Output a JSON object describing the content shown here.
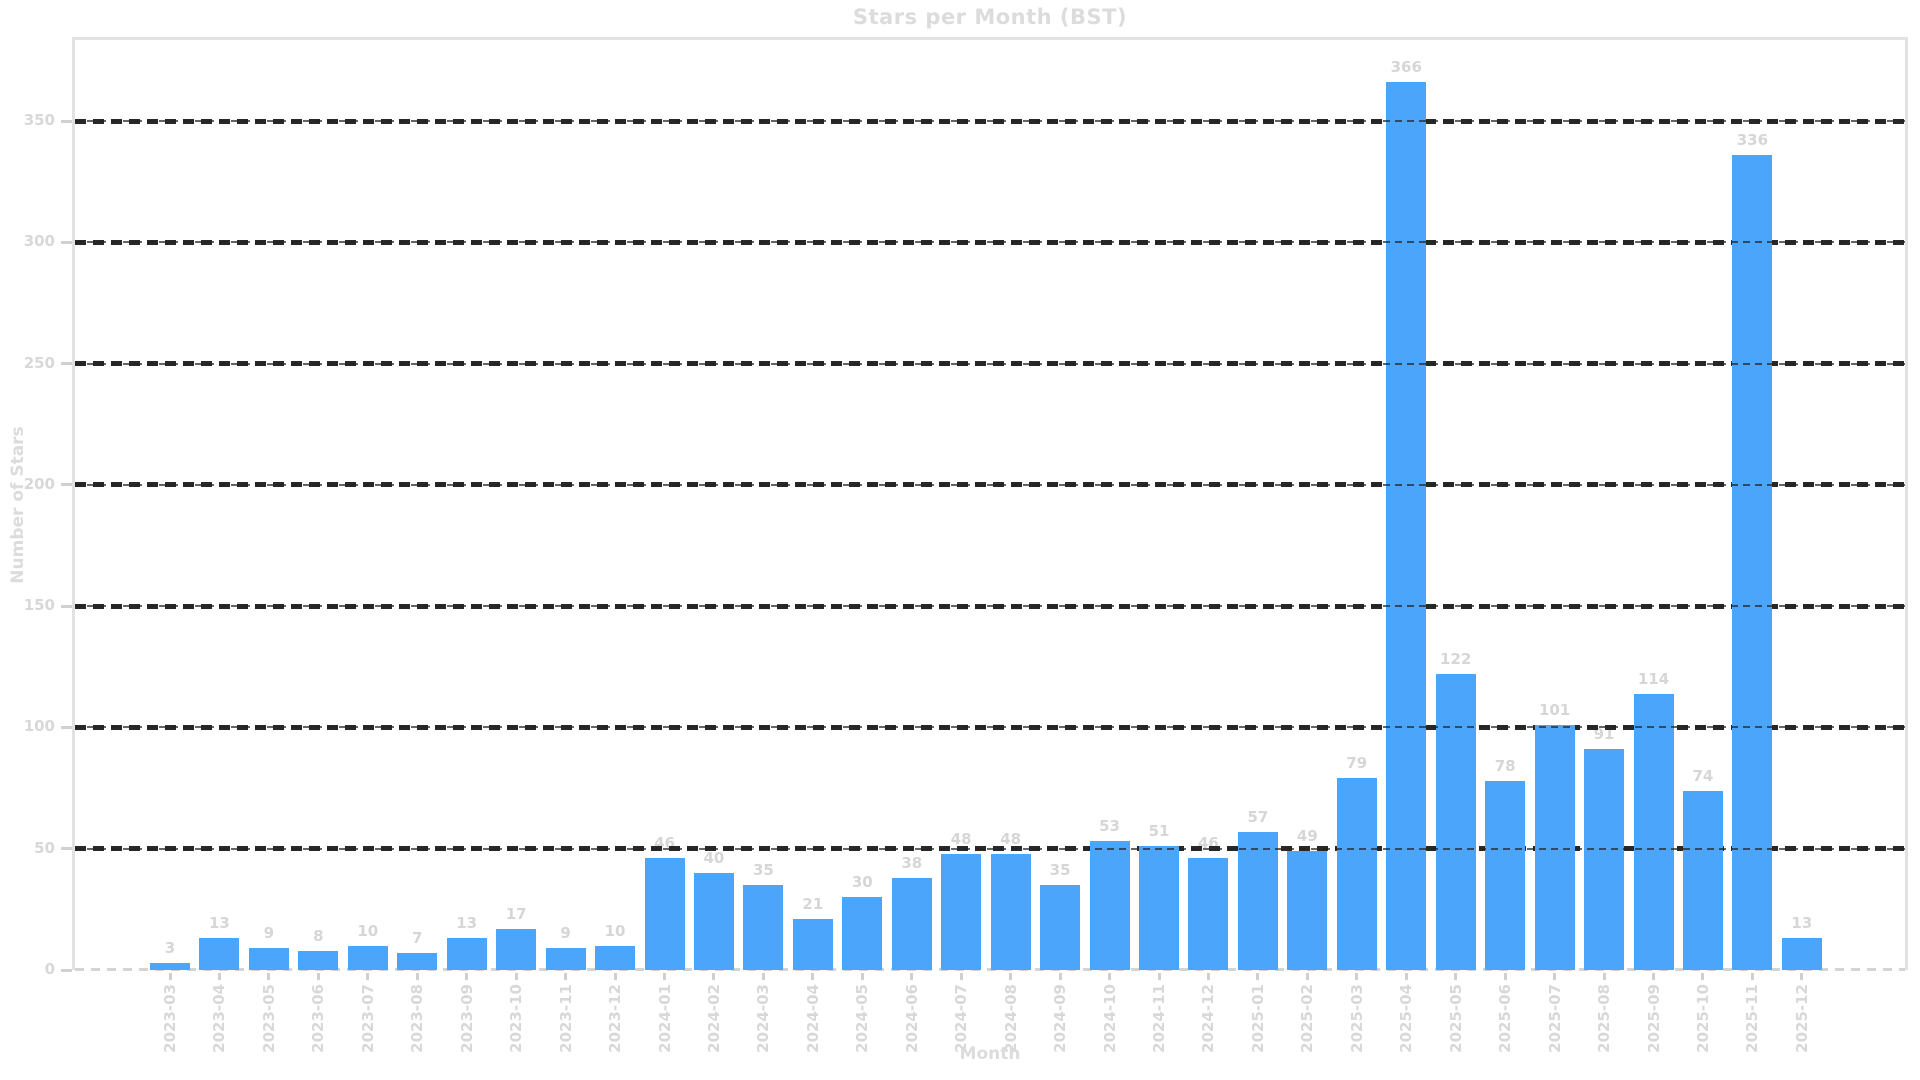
{
  "chart_data": {
    "type": "bar",
    "title": "Stars per Month (BST)",
    "xlabel": "Month",
    "ylabel": "Number of Stars",
    "categories": [
      "2023-03",
      "2023-04",
      "2023-05",
      "2023-06",
      "2023-07",
      "2023-08",
      "2023-09",
      "2023-10",
      "2023-11",
      "2023-12",
      "2024-01",
      "2024-02",
      "2024-03",
      "2024-04",
      "2024-05",
      "2024-06",
      "2024-07",
      "2024-08",
      "2024-09",
      "2024-10",
      "2024-11",
      "2024-12",
      "2025-01",
      "2025-02",
      "2025-03",
      "2025-04",
      "2025-05",
      "2025-06",
      "2025-07",
      "2025-08",
      "2025-09",
      "2025-10",
      "2025-11",
      "2025-12"
    ],
    "values": [
      3,
      13,
      9,
      8,
      10,
      7,
      13,
      17,
      9,
      10,
      46,
      40,
      35,
      21,
      30,
      38,
      48,
      48,
      35,
      53,
      51,
      46,
      57,
      49,
      79,
      366,
      122,
      78,
      101,
      91,
      114,
      74,
      336,
      13
    ],
    "yticks": [
      0,
      50,
      100,
      150,
      200,
      250,
      300,
      350
    ],
    "ylim": [
      0,
      383
    ],
    "grid": "horizontal-dashed",
    "legend": "none",
    "colors": {
      "bar": "#4aa5fb",
      "gridline": "#282828",
      "text": "#d8d8d8",
      "spine": "#e2e2e2",
      "background": "#ffffff"
    }
  }
}
